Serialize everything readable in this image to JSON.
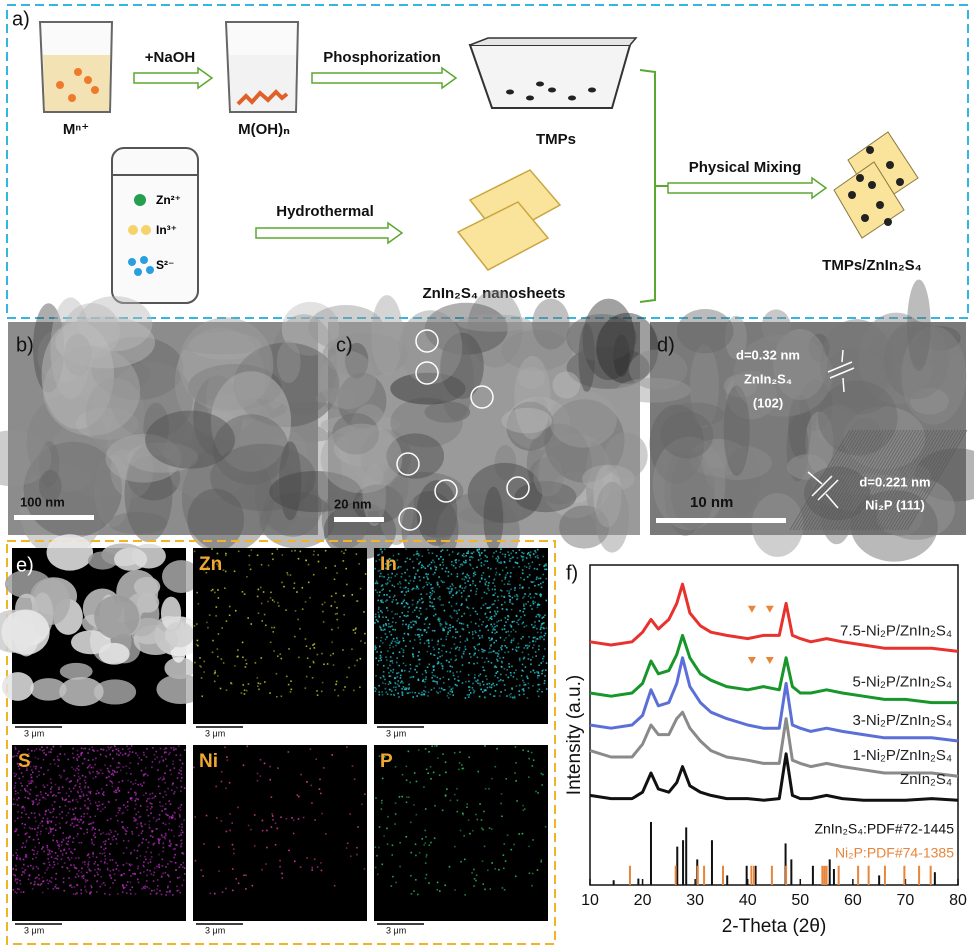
{
  "panel_a": {
    "label": "a)",
    "steps": {
      "naoh": "+NaOH",
      "phosphorization": "Phosphorization",
      "hydrothermal": "Hydrothermal",
      "mixing": "Physical Mixing"
    },
    "species": {
      "metal_ion": "Mⁿ⁺",
      "hydroxide": "M(OH)ₙ",
      "tmps": "TMPs",
      "zn": "Zn²⁺",
      "in": "In³⁺",
      "s": "S²⁻",
      "nanosheets": "ZnIn₂S₄ nanosheets",
      "composite": "TMPs/ZnIn₂S₄"
    }
  },
  "panel_b": {
    "label": "b)",
    "scale_bar": "100 nm"
  },
  "panel_c": {
    "label": "c)",
    "scale_bar": "20 nm"
  },
  "panel_d": {
    "label": "d)",
    "fringe_1": {
      "spacing": "d=0.32 nm",
      "phase": "ZnIn₂S₄",
      "plane": "(102)"
    },
    "fringe_2": {
      "spacing": "d=0.221 nm",
      "phase": "Ni₂P (111)"
    },
    "scale_bar": "10 nm"
  },
  "panel_e": {
    "label": "e)",
    "tiles": [
      {
        "scale_bar": "3 μm"
      },
      {
        "element": "Zn",
        "scale_bar": "3 μm"
      },
      {
        "element": "In",
        "scale_bar": "3 μm"
      },
      {
        "element": "S",
        "scale_bar": "3 μm"
      },
      {
        "element": "Ni",
        "scale_bar": "3 μm"
      },
      {
        "element": "P",
        "scale_bar": "3 μm"
      }
    ]
  },
  "chart_data": {
    "type": "line",
    "panel_label": "f)",
    "xlabel": "2-Theta (2θ)",
    "ylabel": "Intensity (a.u.)",
    "xlim": [
      10,
      80
    ],
    "xticks": [
      10,
      20,
      30,
      40,
      50,
      60,
      70,
      80
    ],
    "ylim": [
      0,
      100
    ],
    "x": [
      10,
      14,
      18,
      20,
      21.6,
      23,
      25,
      26.5,
      27.6,
      29,
      31,
      33,
      36,
      40,
      43,
      46,
      47.3,
      48.5,
      50,
      52,
      55,
      58,
      62,
      66,
      70,
      75,
      80
    ],
    "series": [
      {
        "name": "7.5-Ni₂P/ZnIn₂S₄",
        "color": "#e8322e",
        "values": [
          76,
          75,
          76,
          79,
          83,
          80,
          83,
          88,
          94,
          85,
          81,
          79,
          78,
          77,
          78,
          78,
          88,
          78,
          77,
          76,
          77,
          76,
          75,
          74,
          74,
          74,
          73
        ]
      },
      {
        "name": "5-Ni₂P/ZnIn₂S₄",
        "color": "#17962a",
        "values": [
          60,
          59,
          60,
          63,
          70,
          66,
          67,
          72,
          78,
          71,
          66,
          64,
          62,
          61,
          62,
          61,
          71,
          62,
          60,
          60,
          61,
          60,
          59,
          58,
          58,
          57,
          57
        ]
      },
      {
        "name": "3-Ni₂P/ZnIn₂S₄",
        "color": "#5b6fd6",
        "values": [
          50,
          49,
          50,
          53,
          61,
          56,
          57,
          63,
          71,
          62,
          57,
          54,
          52,
          50,
          49,
          49,
          63,
          50,
          49,
          48,
          49,
          48,
          47,
          46,
          46,
          46,
          45
        ]
      },
      {
        "name": "1-Ni₂P/ZnIn₂S₄",
        "color": "#8a8a8a",
        "values": [
          42,
          40,
          40,
          44,
          50,
          47,
          47,
          52,
          54,
          49,
          45,
          42,
          40,
          39,
          38,
          38,
          52,
          39,
          38,
          37,
          38,
          37,
          36,
          35,
          35,
          35,
          34
        ]
      },
      {
        "name": "ZnIn₂S₄",
        "color": "#111111",
        "values": [
          28,
          27,
          27,
          29,
          35,
          30,
          29,
          32,
          37,
          31,
          29,
          28,
          27,
          27,
          26.5,
          27,
          41,
          28,
          27,
          27,
          28,
          27,
          26.5,
          26.5,
          26.5,
          27,
          26.5
        ]
      }
    ],
    "references": [
      {
        "name": "ZnIn₂S₄:PDF#72-1445",
        "color": "#111111",
        "positions": [
          14.5,
          19.2,
          21.6,
          26.6,
          27.7,
          28.3,
          30.4,
          33.2,
          36.1,
          39.8,
          41.5,
          47.2,
          48.3,
          52.4,
          55.6,
          56.4,
          65,
          75.6
        ],
        "heights": [
          1.5,
          2,
          19.7,
          12,
          14,
          18,
          8,
          14,
          3,
          6,
          6,
          13,
          8,
          6,
          8,
          5,
          3,
          4
        ]
      },
      {
        "name": "Ni₂P:PDF#74-1385",
        "color": "#e8853a",
        "positions": [
          17.6,
          26.3,
          30.5,
          31.7,
          35.3,
          40.7,
          41.2,
          44.6,
          47.3,
          54.2,
          54.6,
          55.0,
          57.3,
          61.0,
          63.0,
          66.1,
          69.8,
          72.6,
          74.8
        ],
        "heights": [
          6,
          6,
          6,
          6,
          6,
          6,
          6,
          6,
          6,
          6,
          6,
          6,
          6,
          6,
          6,
          6,
          6,
          6,
          6
        ]
      }
    ]
  }
}
